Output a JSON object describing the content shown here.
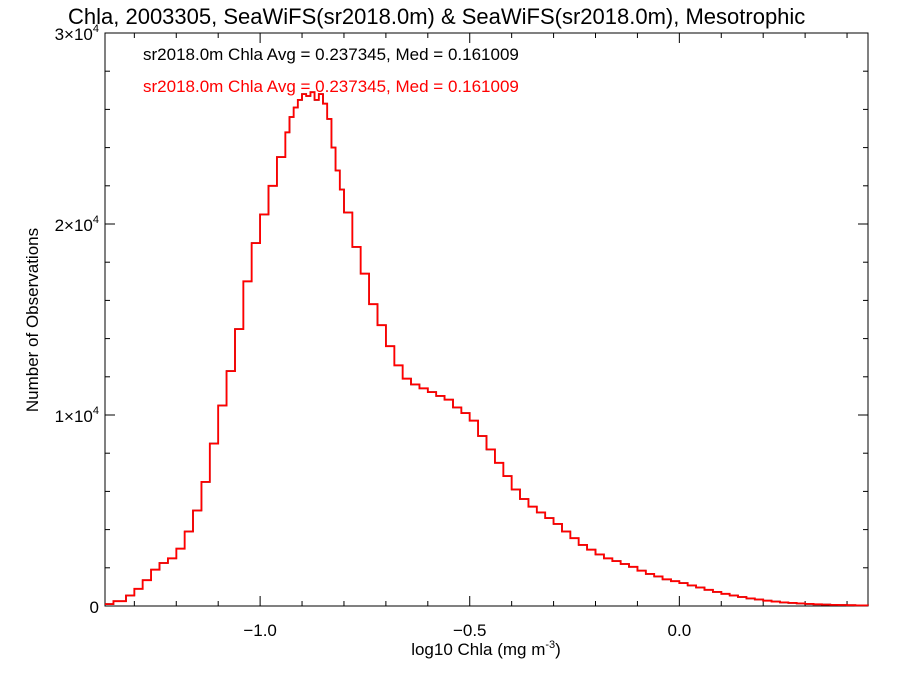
{
  "chart_data": {
    "type": "line",
    "title": "Chla, 2003305, SeaWiFS(sr2018.0m) & SeaWiFS(sr2018.0m), Mesotrophic",
    "xlabel": "log10 Chla (mg m",
    "xlabel_sup": "-3",
    "xlabel_tail": ")",
    "ylabel": "Number of Observations",
    "xlim": [
      -1.37,
      0.45
    ],
    "ylim": [
      0,
      30000
    ],
    "x_ticks": [
      {
        "value": -1.0,
        "label": "−1.0"
      },
      {
        "value": -0.5,
        "label": "−0.5"
      },
      {
        "value": 0.0,
        "label": "0.0"
      }
    ],
    "y_ticks": [
      {
        "value": 0,
        "label": "0",
        "exp": ""
      },
      {
        "value": 10000,
        "label": "1×10",
        "exp": "4"
      },
      {
        "value": 20000,
        "label": "2×10",
        "exp": "4"
      },
      {
        "value": 30000,
        "label": "3×10",
        "exp": "4"
      }
    ],
    "grid": false,
    "annotations": [
      {
        "text": "sr2018.0m Chla Avg = 0.237345, Med = 0.161009",
        "color": "#000000"
      },
      {
        "text": "sr2018.0m Chla Avg = 0.237345, Med = 0.161009",
        "color": "#ff0000"
      }
    ],
    "series": [
      {
        "color": "#000000",
        "x": [
          -1.37,
          -1.35,
          -1.32,
          -1.3,
          -1.28,
          -1.26,
          -1.24,
          -1.22,
          -1.2,
          -1.18,
          -1.16,
          -1.14,
          -1.12,
          -1.1,
          -1.08,
          -1.06,
          -1.04,
          -1.02,
          -1.0,
          -0.98,
          -0.96,
          -0.94,
          -0.93,
          -0.92,
          -0.91,
          -0.9,
          -0.89,
          -0.88,
          -0.87,
          -0.86,
          -0.85,
          -0.84,
          -0.83,
          -0.82,
          -0.81,
          -0.8,
          -0.78,
          -0.76,
          -0.74,
          -0.72,
          -0.7,
          -0.68,
          -0.66,
          -0.64,
          -0.62,
          -0.6,
          -0.58,
          -0.56,
          -0.54,
          -0.52,
          -0.5,
          -0.48,
          -0.46,
          -0.44,
          -0.42,
          -0.4,
          -0.38,
          -0.36,
          -0.34,
          -0.32,
          -0.3,
          -0.28,
          -0.26,
          -0.24,
          -0.22,
          -0.2,
          -0.18,
          -0.16,
          -0.14,
          -0.12,
          -0.1,
          -0.08,
          -0.06,
          -0.04,
          -0.02,
          0.0,
          0.02,
          0.04,
          0.06,
          0.08,
          0.1,
          0.12,
          0.14,
          0.16,
          0.18,
          0.2,
          0.22,
          0.24,
          0.26,
          0.28,
          0.3,
          0.32,
          0.34,
          0.36,
          0.38,
          0.4,
          0.42,
          0.45
        ],
        "y": [
          100,
          250,
          550,
          900,
          1350,
          1900,
          2250,
          2500,
          3000,
          3900,
          5000,
          6500,
          8500,
          10500,
          12300,
          14500,
          17000,
          19000,
          20500,
          22000,
          23500,
          24800,
          25600,
          26100,
          26500,
          26800,
          26700,
          26900,
          26500,
          26800,
          26300,
          25500,
          24000,
          22800,
          21800,
          20600,
          18800,
          17400,
          15800,
          14700,
          13600,
          12600,
          11900,
          11600,
          11400,
          11200,
          11000,
          10800,
          10400,
          10100,
          9700,
          8900,
          8200,
          7500,
          6800,
          6100,
          5600,
          5200,
          4900,
          4600,
          4300,
          3900,
          3550,
          3200,
          2950,
          2700,
          2500,
          2350,
          2200,
          2050,
          1850,
          1680,
          1550,
          1400,
          1300,
          1200,
          1080,
          970,
          850,
          740,
          640,
          550,
          470,
          400,
          340,
          280,
          230,
          190,
          160,
          135,
          110,
          90,
          75,
          60,
          50,
          40,
          32,
          25
        ],
        "width": 1.6
      },
      {
        "color": "#ff0000",
        "x": [
          -1.37,
          -1.35,
          -1.32,
          -1.3,
          -1.28,
          -1.26,
          -1.24,
          -1.22,
          -1.2,
          -1.18,
          -1.16,
          -1.14,
          -1.12,
          -1.1,
          -1.08,
          -1.06,
          -1.04,
          -1.02,
          -1.0,
          -0.98,
          -0.96,
          -0.94,
          -0.93,
          -0.92,
          -0.91,
          -0.9,
          -0.89,
          -0.88,
          -0.87,
          -0.86,
          -0.85,
          -0.84,
          -0.83,
          -0.82,
          -0.81,
          -0.8,
          -0.78,
          -0.76,
          -0.74,
          -0.72,
          -0.7,
          -0.68,
          -0.66,
          -0.64,
          -0.62,
          -0.6,
          -0.58,
          -0.56,
          -0.54,
          -0.52,
          -0.5,
          -0.48,
          -0.46,
          -0.44,
          -0.42,
          -0.4,
          -0.38,
          -0.36,
          -0.34,
          -0.32,
          -0.3,
          -0.28,
          -0.26,
          -0.24,
          -0.22,
          -0.2,
          -0.18,
          -0.16,
          -0.14,
          -0.12,
          -0.1,
          -0.08,
          -0.06,
          -0.04,
          -0.02,
          0.0,
          0.02,
          0.04,
          0.06,
          0.08,
          0.1,
          0.12,
          0.14,
          0.16,
          0.18,
          0.2,
          0.22,
          0.24,
          0.26,
          0.28,
          0.3,
          0.32,
          0.34,
          0.36,
          0.38,
          0.4,
          0.42,
          0.45
        ],
        "y": [
          100,
          250,
          550,
          900,
          1350,
          1900,
          2250,
          2500,
          3000,
          3900,
          5000,
          6500,
          8500,
          10500,
          12300,
          14500,
          17000,
          19000,
          20500,
          22000,
          23500,
          24800,
          25600,
          26100,
          26500,
          26800,
          26700,
          26900,
          26500,
          26800,
          26300,
          25500,
          24000,
          22800,
          21800,
          20600,
          18800,
          17400,
          15800,
          14700,
          13600,
          12600,
          11900,
          11600,
          11400,
          11200,
          11000,
          10800,
          10400,
          10100,
          9700,
          8900,
          8200,
          7500,
          6800,
          6100,
          5600,
          5200,
          4900,
          4600,
          4300,
          3900,
          3550,
          3200,
          2950,
          2700,
          2500,
          2350,
          2200,
          2050,
          1850,
          1680,
          1550,
          1400,
          1300,
          1200,
          1080,
          970,
          850,
          740,
          640,
          550,
          470,
          400,
          340,
          280,
          230,
          190,
          160,
          135,
          110,
          90,
          75,
          60,
          50,
          40,
          32,
          25
        ],
        "width": 1.8
      }
    ]
  }
}
